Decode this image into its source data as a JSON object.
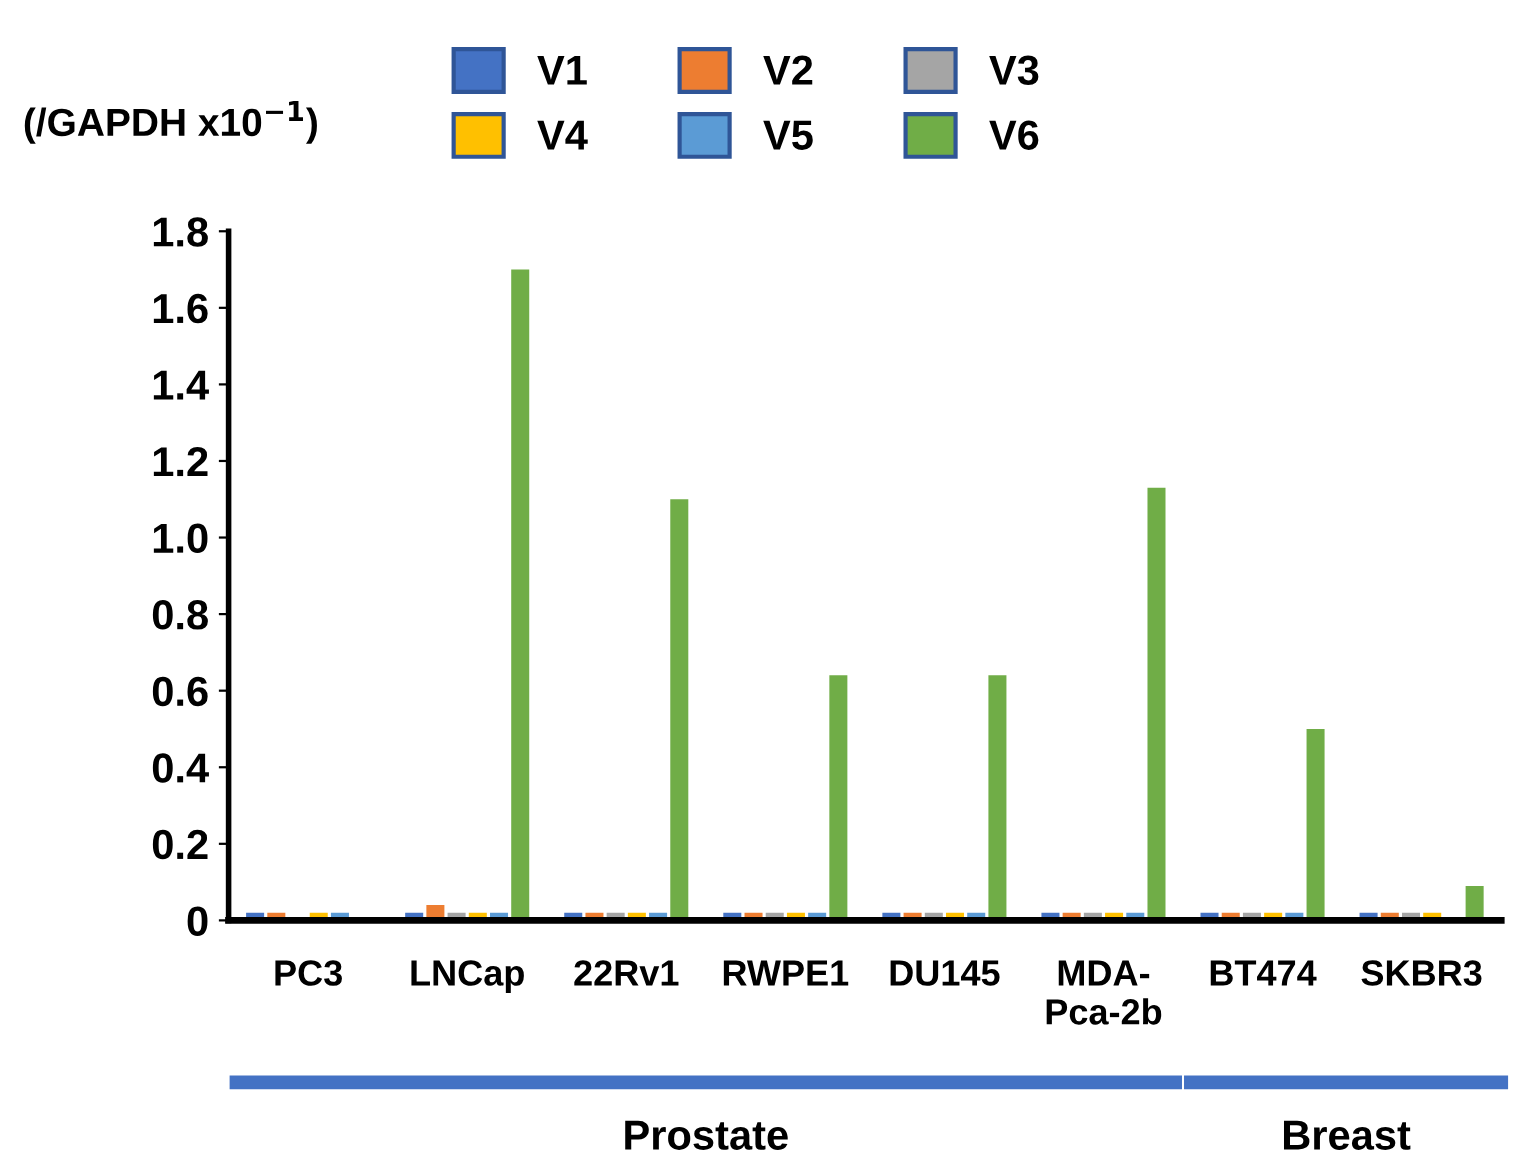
{
  "chart_data": {
    "type": "bar",
    "ylabel": "(/GAPDH x10$^{−1}$)",
    "categories": [
      "PC3",
      "LNCap",
      "22Rv1",
      "RWPE1",
      "DU145",
      "MDA-\nPca-2b",
      "BT474",
      "SKBR3"
    ],
    "series": [
      {
        "name": "V1",
        "color": "#4472c4",
        "values": [
          0.02,
          0.02,
          0.02,
          0.02,
          0.02,
          0.02,
          0.02,
          0.02
        ]
      },
      {
        "name": "V2",
        "color": "#ed7d31",
        "values": [
          0.02,
          0.04,
          0.02,
          0.02,
          0.02,
          0.02,
          0.02,
          0.02
        ]
      },
      {
        "name": "V3",
        "color": "#a5a5a5",
        "values": [
          0,
          0.02,
          0.02,
          0.02,
          0.02,
          0.02,
          0.02,
          0.02
        ]
      },
      {
        "name": "V4",
        "color": "#ffc000",
        "values": [
          0.02,
          0.02,
          0.02,
          0.02,
          0.02,
          0.02,
          0.02,
          0.02
        ]
      },
      {
        "name": "V5",
        "color": "#5b9bd5",
        "values": [
          0.02,
          0.02,
          0.02,
          0.02,
          0.02,
          0.02,
          0.02,
          0
        ]
      },
      {
        "name": "V6",
        "color": "#70ad47",
        "values": [
          0,
          1.7,
          1.1,
          0.64,
          0.64,
          1.13,
          0.5,
          0.09
        ]
      }
    ],
    "ylim": [
      0,
      1.8
    ],
    "yticks": [
      {
        "value": 0,
        "label": "0"
      },
      0.2,
      0.4,
      0.6,
      {
        "value": 0.8,
        "label": "0.8"
      },
      {
        "value": 1.0,
        "label": "1.0"
      },
      1.2,
      1.4,
      1.6,
      1.8
    ],
    "grid": false,
    "legend": "top",
    "annotations": [
      "Prostate",
      "Breast"
    ]
  }
}
